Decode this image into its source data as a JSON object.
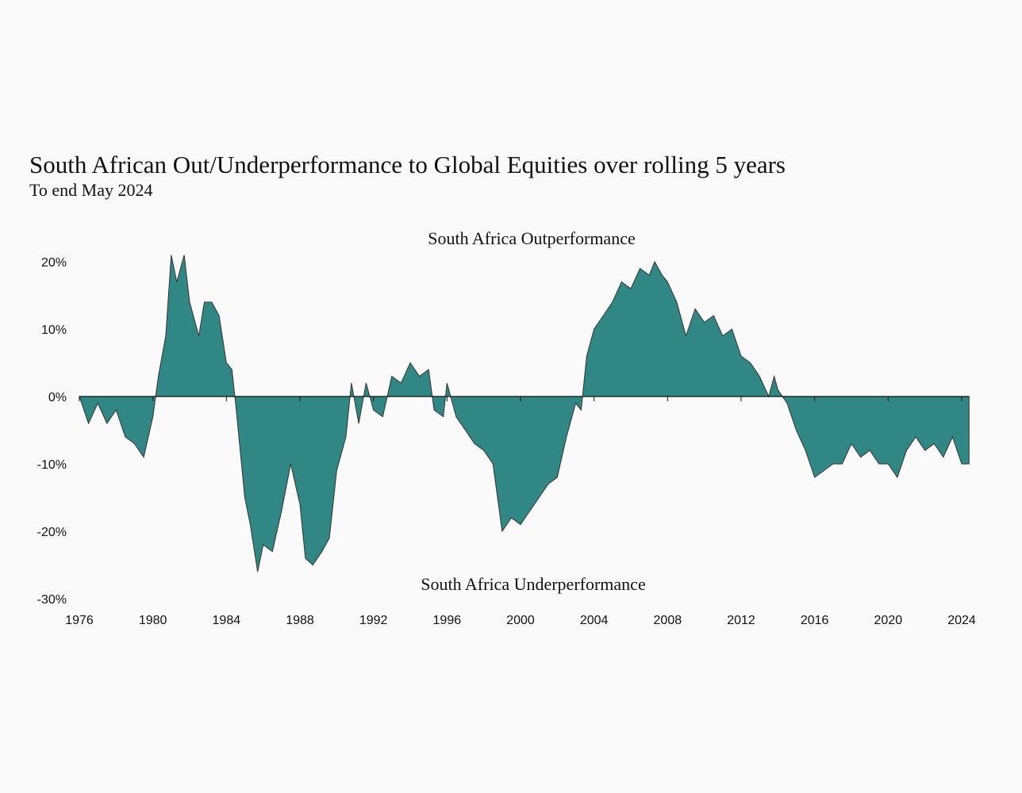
{
  "chart_data": {
    "type": "area",
    "title": "South African Out/Underperformance to Global Equities over rolling 5 years",
    "subtitle": "To end May 2024",
    "annotations": [
      "South Africa Outperformance",
      "South Africa Underperformance"
    ],
    "color": "#318784",
    "x": [
      1976.0,
      1976.5,
      1977.0,
      1977.5,
      1978.0,
      1978.5,
      1979.0,
      1979.5,
      1980.0,
      1980.3,
      1980.7,
      1981.0,
      1981.3,
      1981.7,
      1982.0,
      1982.5,
      1982.8,
      1983.2,
      1983.6,
      1984.0,
      1984.3,
      1984.5,
      1985.0,
      1985.3,
      1985.7,
      1986.0,
      1986.5,
      1987.0,
      1987.5,
      1988.0,
      1988.3,
      1988.7,
      1989.2,
      1989.6,
      1990.0,
      1990.5,
      1990.8,
      1991.2,
      1991.6,
      1992.0,
      1992.5,
      1993.0,
      1993.5,
      1994.0,
      1994.5,
      1995.0,
      1995.3,
      1995.8,
      1996.0,
      1996.5,
      1997.0,
      1997.5,
      1998.0,
      1998.5,
      1999.0,
      1999.5,
      2000.0,
      2000.5,
      2001.0,
      2001.5,
      2002.0,
      2002.5,
      2003.0,
      2003.3,
      2003.6,
      2004.0,
      2004.5,
      2005.0,
      2005.5,
      2006.0,
      2006.5,
      2007.0,
      2007.3,
      2007.7,
      2008.0,
      2008.5,
      2009.0,
      2009.5,
      2010.0,
      2010.5,
      2011.0,
      2011.5,
      2012.0,
      2012.5,
      2013.0,
      2013.5,
      2013.8,
      2014.0,
      2014.5,
      2015.0,
      2015.5,
      2016.0,
      2016.5,
      2017.0,
      2017.5,
      2018.0,
      2018.5,
      2019.0,
      2019.5,
      2020.0,
      2020.5,
      2021.0,
      2021.5,
      2022.0,
      2022.5,
      2023.0,
      2023.5,
      2024.0,
      2024.4
    ],
    "values": [
      0,
      -4,
      -1,
      -4,
      -2,
      -6,
      -7,
      -9,
      -3,
      3,
      9,
      21,
      17,
      21,
      14,
      9,
      14,
      14,
      12,
      5,
      4,
      -1,
      -15,
      -19,
      -26,
      -22,
      -23,
      -17,
      -10,
      -16,
      -24,
      -25,
      -23,
      -21,
      -11,
      -6,
      2,
      -4,
      2,
      -2,
      -3,
      3,
      2,
      5,
      3,
      4,
      -2,
      -3,
      2,
      -3,
      -5,
      -7,
      -8,
      -10,
      -20,
      -18,
      -19,
      -17,
      -15,
      -13,
      -12,
      -6,
      -1,
      -2,
      6,
      10,
      12,
      14,
      17,
      16,
      19,
      18,
      20,
      18,
      17,
      14,
      9,
      13,
      11,
      12,
      9,
      10,
      6,
      5,
      3,
      0,
      3,
      1,
      -1,
      -5,
      -8,
      -12,
      -11,
      -10,
      -10,
      -7,
      -9,
      -8,
      -10,
      -10,
      -12,
      -8,
      -6,
      -8,
      -7,
      -9,
      -6,
      -10,
      -10
    ],
    "xlim": [
      1976,
      2024.4
    ],
    "xticks": [
      1976,
      1980,
      1984,
      1988,
      1992,
      1996,
      2000,
      2004,
      2008,
      2012,
      2016,
      2020,
      2024
    ],
    "ylim": [
      -30,
      20
    ],
    "yticks": [
      {
        "value": 20,
        "label": "20%"
      },
      {
        "value": 10,
        "label": "10%"
      },
      {
        "value": 0,
        "label": "0%"
      },
      {
        "value": -10,
        "label": "-10%"
      },
      {
        "value": -20,
        "label": "-20%"
      },
      {
        "value": -30,
        "label": "-30%"
      }
    ]
  }
}
